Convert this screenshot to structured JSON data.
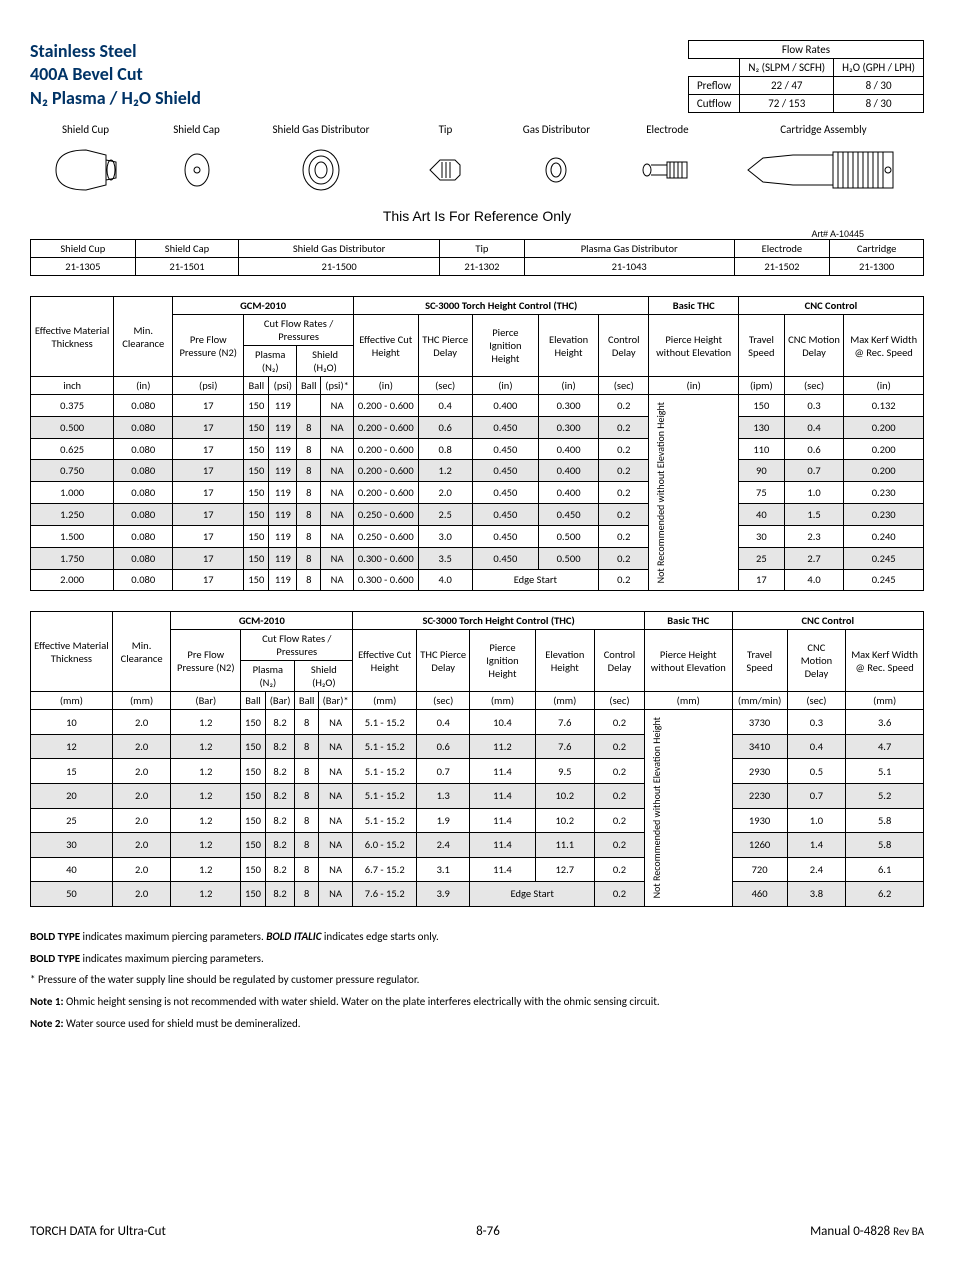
{
  "title": {
    "line1": "Stainless Steel",
    "line2": "400A Bevel Cut",
    "line3": "N₂ Plasma / H₂O Shield",
    "color": "#003366"
  },
  "flow_rates": {
    "header": "Flow Rates",
    "col1": "N₂ (SLPM / SCFH)",
    "col2": "H₂O (GPH / LPH)",
    "rows": [
      {
        "label": "Preflow",
        "c1": "22 / 47",
        "c2": "8 / 30"
      },
      {
        "label": "Cutflow",
        "c1": "72 / 153",
        "c2": "8 / 30"
      }
    ]
  },
  "parts_labels": [
    "Shield Cup",
    "Shield Cap",
    "Shield Gas Distributor",
    "Tip",
    "Gas Distributor",
    "Electrode",
    "Cartridge Assembly"
  ],
  "ref_text": "This Art Is For Reference Only",
  "art_num": "Art# A-10445",
  "part_numbers": {
    "headers": [
      "Shield Cup",
      "Shield Cap",
      "Shield Gas Distributor",
      "Tip",
      "Plasma Gas Distributor",
      "Electrode",
      "Cartridge"
    ],
    "values": [
      "21-1305",
      "21-1501",
      "21-1500",
      "21-1302",
      "21-1043",
      "21-1502",
      "21-1300"
    ]
  },
  "main_headers": {
    "groups": [
      "GCM-2010",
      "SC-3000 Torch Height Control (THC)",
      "Basic THC",
      "CNC Control"
    ],
    "sub": {
      "eff_thick": "Effective Material Thickness",
      "min_clear": "Min. Clearance",
      "preflow": "Pre Flow Pressure (N2)",
      "cutflow": "Cut Flow Rates / Pressures",
      "plasma": "Plasma (N₂)",
      "shield": "Shield (H₂O)",
      "eff_cut": "Effective Cut Height",
      "thc_delay": "THC Pierce Delay",
      "ign_height": "Pierce Ignition Height",
      "elev_height": "Elevation Height",
      "ctrl_delay": "Control Delay",
      "pierce_without": "Pierce Height without Elevation",
      "travel": "Travel Speed",
      "cnc_delay": "CNC Motion Delay",
      "max_kerf": "Max Kerf Width @ Rec. Speed"
    }
  },
  "units_imperial": [
    "inch",
    "(in)",
    "(psi)",
    "Ball",
    "(psi)",
    "Ball",
    "(psi)*",
    "(in)",
    "(sec)",
    "(in)",
    "(in)",
    "(sec)",
    "(in)",
    "(ipm)",
    "(sec)",
    "(in)"
  ],
  "units_metric": [
    "(mm)",
    "(mm)",
    "(Bar)",
    "Ball",
    "(Bar)",
    "Ball",
    "(Bar)*",
    "(mm)",
    "(sec)",
    "(mm)",
    "(mm)",
    "(sec)",
    "(mm)",
    "(mm/min)",
    "(sec)",
    "(mm)"
  ],
  "vert_text": "Not Recommended without Elevation Height",
  "rows_imperial": [
    [
      "0.375",
      "0.080",
      "17",
      "150",
      "119",
      "",
      "NA",
      "0.200 - 0.600",
      "0.4",
      "0.400",
      "0.300",
      "0.2",
      "150",
      "0.3",
      "0.132"
    ],
    [
      "0.500",
      "0.080",
      "17",
      "150",
      "119",
      "8",
      "NA",
      "0.200 - 0.600",
      "0.6",
      "0.450",
      "0.300",
      "0.2",
      "130",
      "0.4",
      "0.200"
    ],
    [
      "0.625",
      "0.080",
      "17",
      "150",
      "119",
      "8",
      "NA",
      "0.200 - 0.600",
      "0.8",
      "0.450",
      "0.400",
      "0.2",
      "110",
      "0.6",
      "0.200"
    ],
    [
      "0.750",
      "0.080",
      "17",
      "150",
      "119",
      "8",
      "NA",
      "0.200 - 0.600",
      "1.2",
      "0.450",
      "0.400",
      "0.2",
      "90",
      "0.7",
      "0.200"
    ],
    [
      "1.000",
      "0.080",
      "17",
      "150",
      "119",
      "8",
      "NA",
      "0.200 - 0.600",
      "2.0",
      "0.450",
      "0.400",
      "0.2",
      "75",
      "1.0",
      "0.230"
    ],
    [
      "1.250",
      "0.080",
      "17",
      "150",
      "119",
      "8",
      "NA",
      "0.250 - 0.600",
      "2.5",
      "0.450",
      "0.450",
      "0.2",
      "40",
      "1.5",
      "0.230"
    ],
    [
      "1.500",
      "0.080",
      "17",
      "150",
      "119",
      "8",
      "NA",
      "0.250 - 0.600",
      "3.0",
      "0.450",
      "0.500",
      "0.2",
      "30",
      "2.3",
      "0.240"
    ],
    [
      "1.750",
      "0.080",
      "17",
      "150",
      "119",
      "8",
      "NA",
      "0.300 - 0.600",
      "3.5",
      "0.450",
      "0.500",
      "0.2",
      "25",
      "2.7",
      "0.245"
    ],
    [
      "2.000",
      "0.080",
      "17",
      "150",
      "119",
      "8",
      "NA",
      "0.300 - 0.600",
      "4.0",
      "EDGE",
      "",
      "0.2",
      "17",
      "4.0",
      "0.245"
    ]
  ],
  "rows_metric": [
    [
      "10",
      "2.0",
      "1.2",
      "150",
      "8.2",
      "8",
      "NA",
      "5.1 - 15.2",
      "0.4",
      "10.4",
      "7.6",
      "0.2",
      "3730",
      "0.3",
      "3.6"
    ],
    [
      "12",
      "2.0",
      "1.2",
      "150",
      "8.2",
      "8",
      "NA",
      "5.1 - 15.2",
      "0.6",
      "11.2",
      "7.6",
      "0.2",
      "3410",
      "0.4",
      "4.7"
    ],
    [
      "15",
      "2.0",
      "1.2",
      "150",
      "8.2",
      "8",
      "NA",
      "5.1 - 15.2",
      "0.7",
      "11.4",
      "9.5",
      "0.2",
      "2930",
      "0.5",
      "5.1"
    ],
    [
      "20",
      "2.0",
      "1.2",
      "150",
      "8.2",
      "8",
      "NA",
      "5.1 - 15.2",
      "1.3",
      "11.4",
      "10.2",
      "0.2",
      "2230",
      "0.7",
      "5.2"
    ],
    [
      "25",
      "2.0",
      "1.2",
      "150",
      "8.2",
      "8",
      "NA",
      "5.1 - 15.2",
      "1.9",
      "11.4",
      "10.2",
      "0.2",
      "1930",
      "1.0",
      "5.8"
    ],
    [
      "30",
      "2.0",
      "1.2",
      "150",
      "8.2",
      "8",
      "NA",
      "6.0 - 15.2",
      "2.4",
      "11.4",
      "11.1",
      "0.2",
      "1260",
      "1.4",
      "5.8"
    ],
    [
      "40",
      "2.0",
      "1.2",
      "150",
      "8.2",
      "8",
      "NA",
      "6.7 - 15.2",
      "3.1",
      "11.4",
      "12.7",
      "0.2",
      "720",
      "2.4",
      "6.1"
    ],
    [
      "50",
      "2.0",
      "1.2",
      "150",
      "8.2",
      "8",
      "NA",
      "7.6 - 15.2",
      "3.9",
      "EDGE",
      "",
      "0.2",
      "460",
      "3.8",
      "6.2"
    ]
  ],
  "edge_start": "Edge Start",
  "notes": [
    {
      "prefix": "BOLD TYPE",
      "text": " indicates maximum piercing parameters.  ",
      "italic_prefix": "BOLD ITALIC",
      "suffix": " indicates edge starts only."
    },
    {
      "prefix": "BOLD TYPE",
      "text": " indicates maximum piercing parameters."
    },
    {
      "prefix": "*",
      "text": " Pressure of the water supply line should be regulated by customer pressure regulator."
    },
    {
      "prefix": "Note 1:",
      "text": " Ohmic height sensing is not recommended with water shield. Water on the plate interferes electrically with the ohmic sensing circuit."
    },
    {
      "prefix": "Note 2:",
      "text": " Water source used for shield must be demineralized."
    }
  ],
  "footer": {
    "left": "TORCH DATA for Ultra-Cut",
    "center": "8-76",
    "right_pre": "Manual 0-4828 ",
    "right_rev": "Rev BA"
  },
  "shade_color": "#e6e6e6",
  "border_color": "#000000"
}
